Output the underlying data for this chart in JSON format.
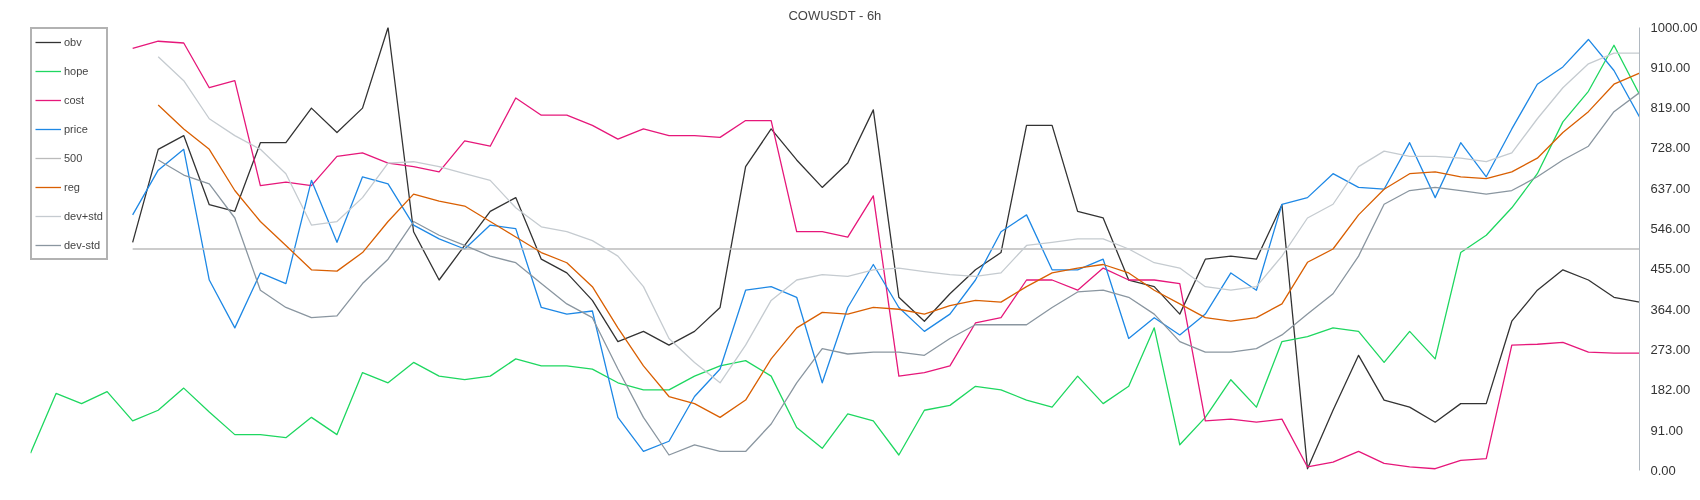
{
  "chart_data": {
    "type": "line",
    "title": "COWUSDT - 6h",
    "categories": [
      null,
      null,
      null,
      null,
      null,
      null,
      null,
      null,
      null,
      null,
      null,
      null,
      null,
      null,
      null,
      null,
      null,
      null,
      null,
      null,
      null,
      null,
      null,
      null,
      null,
      null,
      null,
      null,
      null,
      null,
      null,
      null,
      null,
      null,
      null,
      null,
      null,
      null,
      null,
      null,
      null,
      null,
      null,
      null,
      null,
      null,
      null,
      null,
      null,
      null,
      null,
      null,
      null,
      null,
      null,
      null,
      null,
      null,
      null,
      null,
      null,
      null,
      null,
      null
    ],
    "ylim": [
      0,
      1000
    ],
    "yticks": [
      {
        "value": 0,
        "label": "0.00"
      },
      {
        "value": 91,
        "label": "91.00"
      },
      {
        "value": 182,
        "label": "182.00"
      },
      {
        "value": 273,
        "label": "273.00"
      },
      {
        "value": 364,
        "label": "364.00"
      },
      {
        "value": 455,
        "label": "455.00"
      },
      {
        "value": 546,
        "label": "546.00"
      },
      {
        "value": 637,
        "label": "637.00"
      },
      {
        "value": 728,
        "label": "728.00"
      },
      {
        "value": 819,
        "label": "819.00"
      },
      {
        "value": 910,
        "label": "910.00"
      },
      {
        "value": 1000,
        "label": "1000.00"
      }
    ],
    "legend": "top left",
    "tick_labels": "y",
    "marker": "none",
    "line_style": "solid",
    "series": [
      {
        "name": "obv",
        "color": "#333333",
        "values": [
          null,
          null,
          null,
          null,
          515,
          725,
          756,
          600,
          585,
          740,
          740,
          818,
          763,
          818,
          1000,
          539,
          430,
          508,
          585,
          616,
          477,
          446,
          384,
          291,
          314,
          283,
          314,
          368,
          686,
          771,
          701,
          639,
          694,
          814,
          391,
          337,
          399,
          453,
          492,
          779,
          779,
          585,
          570,
          430,
          415,
          353,
          477,
          484,
          477,
          600,
          4,
          136,
          260,
          159,
          143,
          109,
          151,
          151,
          337,
          407,
          453,
          430,
          391,
          380
        ]
      },
      {
        "name": "hope",
        "color": "#1ed760",
        "values": [
          39,
          174,
          151,
          178,
          112,
          136,
          186,
          132,
          81,
          81,
          74,
          120,
          81,
          221,
          198,
          244,
          213,
          205,
          213,
          252,
          236,
          236,
          229,
          198,
          182,
          182,
          213,
          236,
          248,
          213,
          97,
          50,
          128,
          112,
          35,
          136,
          147,
          190,
          182,
          159,
          143,
          213,
          151,
          190,
          322,
          58,
          120,
          205,
          143,
          291,
          302,
          322,
          314,
          244,
          314,
          252,
          492,
          531,
          593,
          670,
          787,
          856,
          960,
          849
        ]
      },
      {
        "name": "cost",
        "color": "#e6177a",
        "values": [
          null,
          null,
          null,
          null,
          953,
          969,
          965,
          864,
          880,
          643,
          651,
          643,
          709,
          717,
          694,
          686,
          674,
          744,
          732,
          841,
          802,
          802,
          779,
          748,
          771,
          756,
          756,
          752,
          790,
          790,
          539,
          539,
          527,
          620,
          213,
          221,
          236,
          333,
          345,
          430,
          430,
          407,
          457,
          430,
          430,
          422,
          112,
          116,
          109,
          116,
          8,
          19,
          43,
          16,
          8,
          4,
          23,
          27,
          283,
          285,
          289,
          267,
          265,
          265
        ]
      },
      {
        "name": "price",
        "color": "#1e88e5",
        "values": [
          null,
          null,
          null,
          null,
          577,
          678,
          725,
          430,
          322,
          446,
          422,
          655,
          515,
          663,
          647,
          554,
          523,
          500,
          554,
          546,
          368,
          353,
          360,
          120,
          43,
          66,
          167,
          229,
          407,
          415,
          391,
          198,
          368,
          465,
          368,
          314,
          353,
          430,
          539,
          577,
          453,
          453,
          477,
          298,
          345,
          306,
          353,
          446,
          407,
          601,
          616,
          670,
          639,
          635,
          740,
          616,
          740,
          663,
          771,
          872,
          911,
          973,
          903,
          798
        ]
      },
      {
        "name": "500",
        "color": "#bbbbbb",
        "values": [
          null,
          null,
          null,
          null,
          500,
          500,
          500,
          500,
          500,
          500,
          500,
          500,
          500,
          500,
          500,
          500,
          500,
          500,
          500,
          500,
          500,
          500,
          500,
          500,
          500,
          500,
          500,
          500,
          500,
          500,
          500,
          500,
          500,
          500,
          500,
          500,
          500,
          500,
          500,
          500,
          500,
          500,
          500,
          500,
          500,
          500,
          500,
          500,
          500,
          500,
          500,
          500,
          500,
          500,
          500,
          500,
          500,
          500,
          500,
          500,
          500,
          500,
          500,
          500
        ]
      },
      {
        "name": "reg",
        "color": "#d95f02",
        "values": [
          null,
          null,
          null,
          null,
          null,
          825,
          771,
          725,
          632,
          562,
          508,
          453,
          450,
          492,
          562,
          624,
          608,
          597,
          562,
          527,
          492,
          469,
          415,
          322,
          236,
          167,
          151,
          120,
          159,
          252,
          322,
          357,
          353,
          368,
          364,
          353,
          372,
          384,
          380,
          415,
          446,
          457,
          465,
          446,
          407,
          376,
          345,
          337,
          345,
          376,
          470,
          500,
          577,
          635,
          670,
          674,
          663,
          659,
          674,
          705,
          763,
          810,
          872,
          897
        ]
      },
      {
        "name": "dev+std",
        "color": "#c5cbd0",
        "values": [
          null,
          null,
          null,
          null,
          null,
          934,
          880,
          794,
          756,
          725,
          670,
          554,
          562,
          616,
          694,
          697,
          686,
          670,
          655,
          593,
          550,
          539,
          519,
          484,
          415,
          298,
          244,
          198,
          283,
          384,
          430,
          442,
          438,
          453,
          457,
          449,
          442,
          438,
          446,
          508,
          515,
          523,
          523,
          500,
          469,
          457,
          415,
          407,
          415,
          484,
          570,
          601,
          686,
          721,
          709,
          709,
          705,
          697,
          717,
          794,
          864,
          918,
          942,
          942
        ]
      },
      {
        "name": "dev-std",
        "color": "#8a96a0",
        "values": [
          null,
          null,
          null,
          null,
          null,
          701,
          667,
          647,
          570,
          407,
          368,
          345,
          349,
          422,
          477,
          562,
          531,
          508,
          484,
          469,
          422,
          376,
          345,
          229,
          120,
          35,
          58,
          43,
          43,
          105,
          198,
          275,
          263,
          267,
          267,
          260,
          298,
          329,
          329,
          329,
          368,
          403,
          407,
          391,
          353,
          291,
          267,
          267,
          275,
          306,
          353,
          399,
          484,
          601,
          632,
          639,
          632,
          624,
          632,
          663,
          701,
          732,
          810,
          853
        ]
      }
    ]
  }
}
